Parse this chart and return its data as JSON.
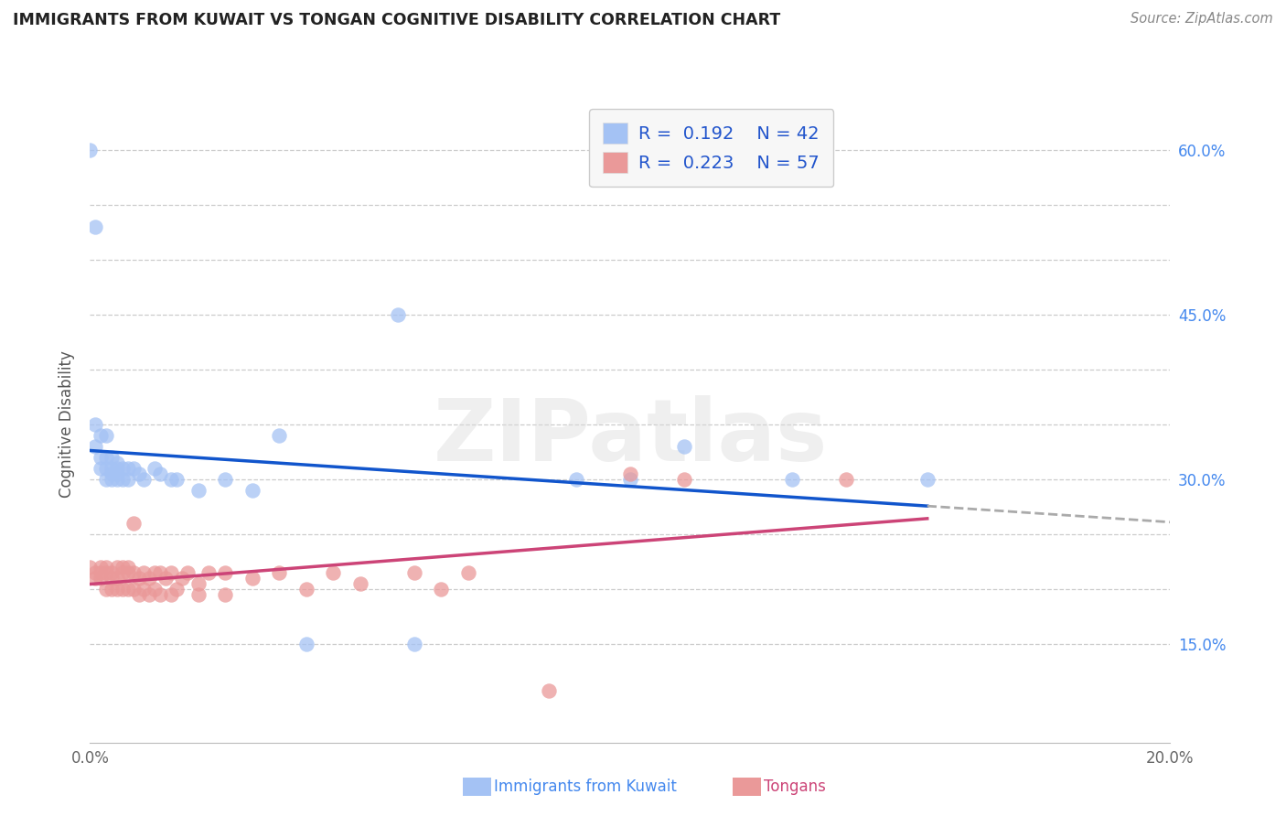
{
  "title": "IMMIGRANTS FROM KUWAIT VS TONGAN COGNITIVE DISABILITY CORRELATION CHART",
  "source": "Source: ZipAtlas.com",
  "ylabel": "Cognitive Disability",
  "x_min": 0.0,
  "x_max": 0.2,
  "y_min": 0.06,
  "y_max": 0.64,
  "kuwait_color": "#a4c2f4",
  "tongan_color": "#ea9999",
  "kuwait_line_color": "#1155cc",
  "tongan_line_color": "#cc4477",
  "kuwait_scatter": [
    [
      0.0,
      0.6
    ],
    [
      0.001,
      0.53
    ],
    [
      0.001,
      0.35
    ],
    [
      0.001,
      0.33
    ],
    [
      0.002,
      0.34
    ],
    [
      0.002,
      0.32
    ],
    [
      0.002,
      0.31
    ],
    [
      0.003,
      0.34
    ],
    [
      0.003,
      0.32
    ],
    [
      0.003,
      0.31
    ],
    [
      0.003,
      0.3
    ],
    [
      0.004,
      0.32
    ],
    [
      0.004,
      0.31
    ],
    [
      0.004,
      0.305
    ],
    [
      0.004,
      0.3
    ],
    [
      0.005,
      0.315
    ],
    [
      0.005,
      0.31
    ],
    [
      0.005,
      0.305
    ],
    [
      0.005,
      0.3
    ],
    [
      0.006,
      0.31
    ],
    [
      0.006,
      0.3
    ],
    [
      0.007,
      0.31
    ],
    [
      0.007,
      0.3
    ],
    [
      0.008,
      0.31
    ],
    [
      0.009,
      0.305
    ],
    [
      0.01,
      0.3
    ],
    [
      0.012,
      0.31
    ],
    [
      0.013,
      0.305
    ],
    [
      0.015,
      0.3
    ],
    [
      0.016,
      0.3
    ],
    [
      0.02,
      0.29
    ],
    [
      0.025,
      0.3
    ],
    [
      0.03,
      0.29
    ],
    [
      0.035,
      0.34
    ],
    [
      0.04,
      0.15
    ],
    [
      0.057,
      0.45
    ],
    [
      0.06,
      0.15
    ],
    [
      0.09,
      0.3
    ],
    [
      0.1,
      0.3
    ],
    [
      0.11,
      0.33
    ],
    [
      0.13,
      0.3
    ],
    [
      0.155,
      0.3
    ]
  ],
  "tongan_scatter": [
    [
      0.0,
      0.22
    ],
    [
      0.001,
      0.215
    ],
    [
      0.001,
      0.21
    ],
    [
      0.002,
      0.22
    ],
    [
      0.002,
      0.215
    ],
    [
      0.002,
      0.21
    ],
    [
      0.003,
      0.22
    ],
    [
      0.003,
      0.215
    ],
    [
      0.003,
      0.2
    ],
    [
      0.004,
      0.215
    ],
    [
      0.004,
      0.21
    ],
    [
      0.004,
      0.2
    ],
    [
      0.005,
      0.22
    ],
    [
      0.005,
      0.21
    ],
    [
      0.005,
      0.2
    ],
    [
      0.006,
      0.22
    ],
    [
      0.006,
      0.215
    ],
    [
      0.006,
      0.2
    ],
    [
      0.007,
      0.22
    ],
    [
      0.007,
      0.215
    ],
    [
      0.007,
      0.2
    ],
    [
      0.008,
      0.215
    ],
    [
      0.008,
      0.2
    ],
    [
      0.008,
      0.26
    ],
    [
      0.009,
      0.21
    ],
    [
      0.009,
      0.195
    ],
    [
      0.01,
      0.215
    ],
    [
      0.01,
      0.2
    ],
    [
      0.011,
      0.21
    ],
    [
      0.011,
      0.195
    ],
    [
      0.012,
      0.215
    ],
    [
      0.012,
      0.2
    ],
    [
      0.013,
      0.215
    ],
    [
      0.013,
      0.195
    ],
    [
      0.014,
      0.21
    ],
    [
      0.015,
      0.215
    ],
    [
      0.015,
      0.195
    ],
    [
      0.016,
      0.2
    ],
    [
      0.017,
      0.21
    ],
    [
      0.018,
      0.215
    ],
    [
      0.02,
      0.205
    ],
    [
      0.02,
      0.195
    ],
    [
      0.022,
      0.215
    ],
    [
      0.025,
      0.215
    ],
    [
      0.025,
      0.195
    ],
    [
      0.03,
      0.21
    ],
    [
      0.035,
      0.215
    ],
    [
      0.04,
      0.2
    ],
    [
      0.045,
      0.215
    ],
    [
      0.05,
      0.205
    ],
    [
      0.06,
      0.215
    ],
    [
      0.065,
      0.2
    ],
    [
      0.07,
      0.215
    ],
    [
      0.085,
      0.107
    ],
    [
      0.1,
      0.305
    ],
    [
      0.11,
      0.3
    ],
    [
      0.14,
      0.3
    ]
  ]
}
